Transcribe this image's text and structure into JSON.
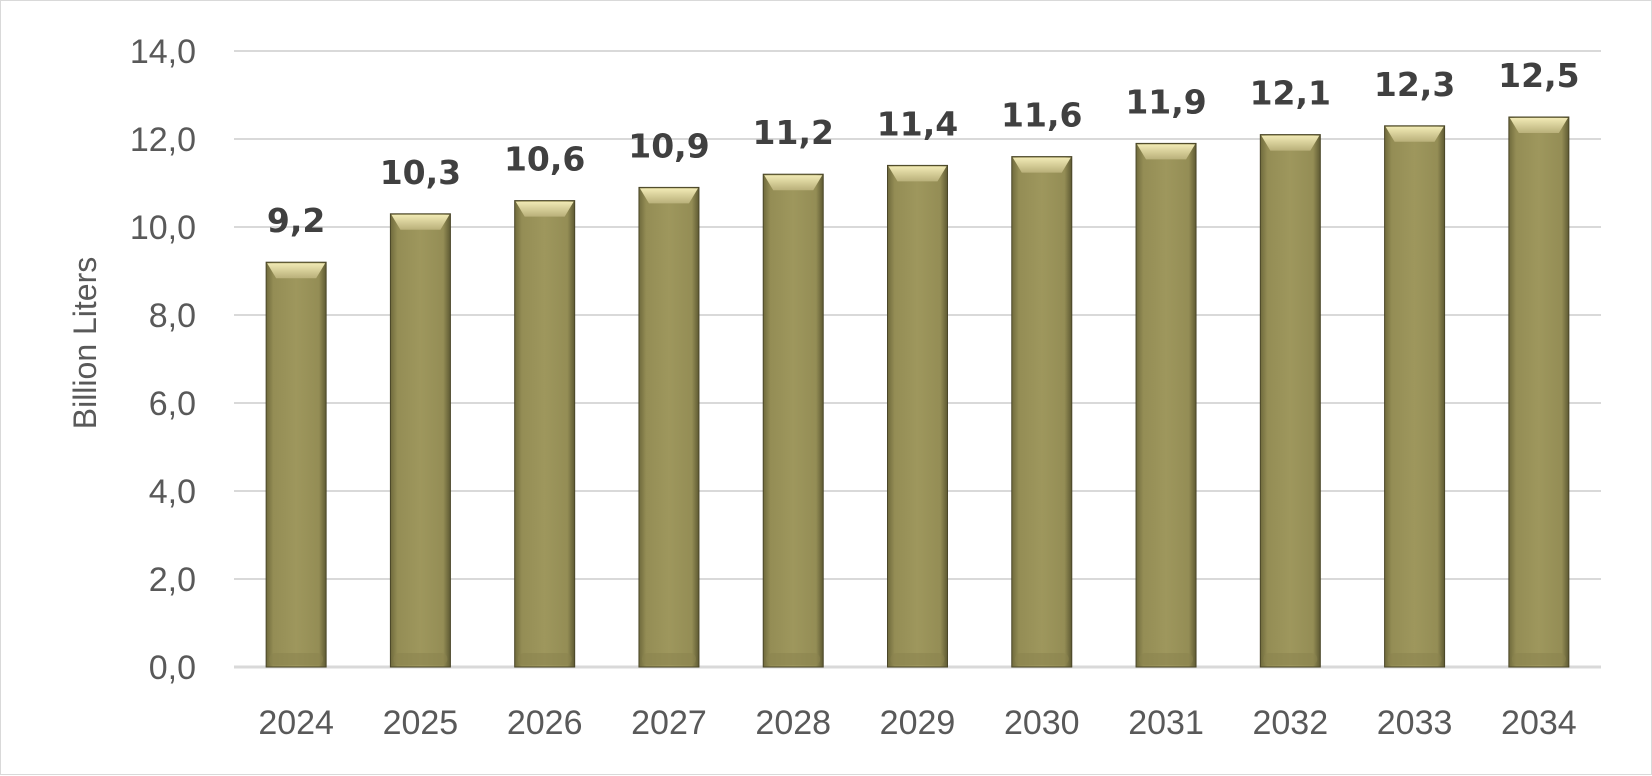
{
  "chart_data": {
    "type": "bar",
    "categories": [
      "2024",
      "2025",
      "2026",
      "2027",
      "2028",
      "2029",
      "2030",
      "2031",
      "2032",
      "2033",
      "2034"
    ],
    "values": [
      9.2,
      10.3,
      10.6,
      10.9,
      11.2,
      11.4,
      11.6,
      11.9,
      12.1,
      12.3,
      12.5
    ],
    "data_labels": [
      "9,2",
      "10,3",
      "10,6",
      "10,9",
      "11,2",
      "11,4",
      "11,6",
      "11,9",
      "12,1",
      "12,3",
      "12,5"
    ],
    "title": "",
    "xlabel": "",
    "ylabel": "Billion Liters",
    "ylim": [
      0,
      14
    ],
    "yticks": [
      0,
      2,
      4,
      6,
      8,
      10,
      12,
      14
    ],
    "ytick_labels": [
      "0,0",
      "2,0",
      "4,0",
      "6,0",
      "8,0",
      "10,0",
      "12,0",
      "14,0"
    ],
    "grid": true,
    "legend": "none",
    "bar_color": "#9b9359"
  }
}
